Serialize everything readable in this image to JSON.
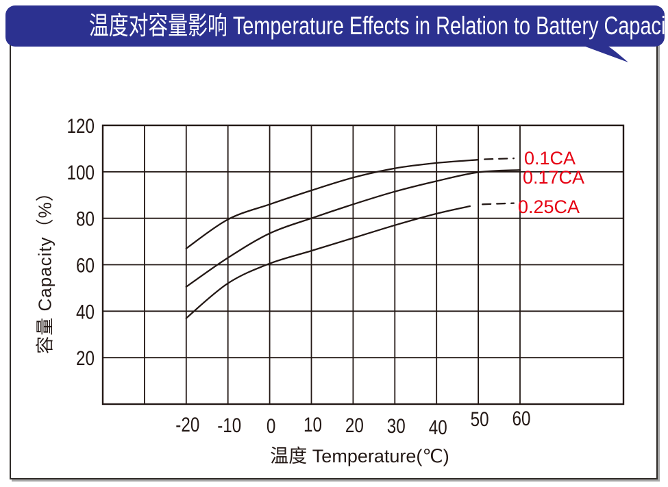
{
  "banner": {
    "title": "温度对容量影响  Temperature Effects in Relation to Battery Capacity",
    "bg_color": "#2c3190",
    "text_color": "#ffffff"
  },
  "chart_data": {
    "type": "line",
    "title": "温度对容量影响 Temperature Effects in Relation to Battery Capacity",
    "xlabel": "温度  Temperature(℃)",
    "ylabel": "容量  Capacity（%）",
    "x_tick_labels": [
      "-20",
      "-10",
      "0",
      "10",
      "20",
      "30",
      "40",
      "50",
      "60"
    ],
    "x_tick_values": [
      -20,
      -10,
      0,
      10,
      20,
      30,
      40,
      50,
      60
    ],
    "y_tick_labels": [
      "120",
      "100",
      "80",
      "60",
      "40",
      "20"
    ],
    "y_tick_values": [
      120,
      100,
      80,
      60,
      40,
      20
    ],
    "x_grid_min": -40,
    "x_grid_max": 60,
    "x_grid_step": 10,
    "y_min": 0,
    "y_max": 120,
    "y_grid_step": 20,
    "grid": true,
    "ink_color": "#231815",
    "series_label_color": "#e60012",
    "legend_position": "right-inline",
    "series": [
      {
        "name": "0.1CA",
        "points": [
          [
            -20,
            67
          ],
          [
            -10,
            79.5
          ],
          [
            0,
            86
          ],
          [
            10,
            92
          ],
          [
            20,
            97.5
          ],
          [
            30,
            101.5
          ],
          [
            40,
            103.8
          ],
          [
            50,
            105.2
          ]
        ],
        "dashed_tail": [
          [
            51.5,
            105.4
          ],
          [
            58.5,
            105.8
          ]
        ]
      },
      {
        "name": "0.17CA",
        "points": [
          [
            -20,
            50.5
          ],
          [
            -10,
            63
          ],
          [
            0,
            73.5
          ],
          [
            10,
            80
          ],
          [
            20,
            86
          ],
          [
            30,
            91.5
          ],
          [
            40,
            96
          ],
          [
            50,
            99.8
          ],
          [
            60,
            100.8
          ]
        ],
        "dashed_tail": null
      },
      {
        "name": "0.25CA",
        "points": [
          [
            -20,
            37
          ],
          [
            -10,
            52
          ],
          [
            0,
            60.5
          ],
          [
            10,
            66
          ],
          [
            20,
            71.5
          ],
          [
            30,
            77
          ],
          [
            40,
            82
          ],
          [
            48,
            85.2
          ]
        ],
        "dashed_tail": [
          [
            51,
            86
          ],
          [
            58.5,
            86.5
          ]
        ]
      }
    ]
  }
}
